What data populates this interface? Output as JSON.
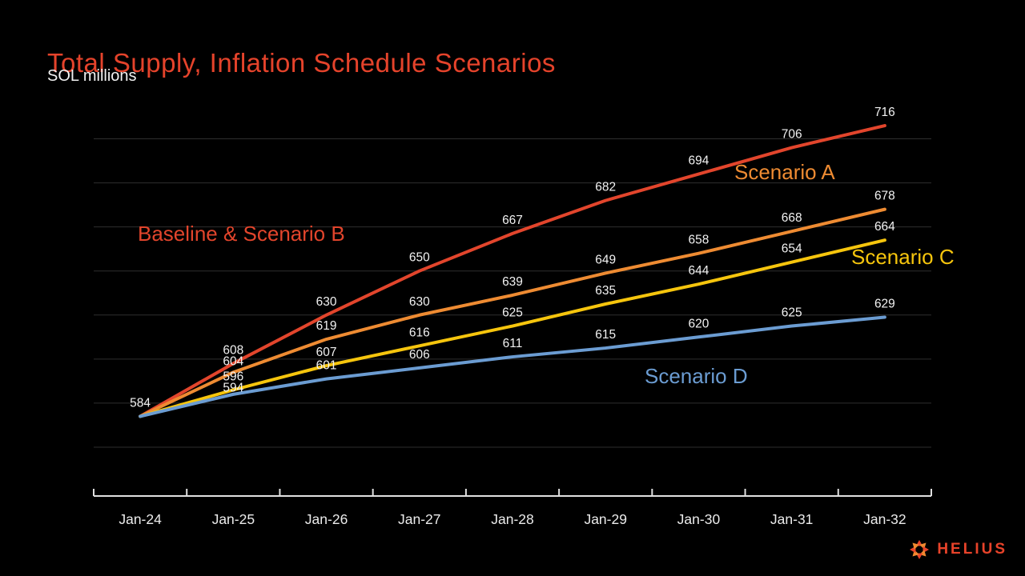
{
  "header": {
    "title": "Total Supply, Inflation Schedule Scenarios",
    "subtitle": "SOL millions",
    "title_color": "#e5432b"
  },
  "chart_data": {
    "type": "line",
    "title": "Total Supply, Inflation Schedule Scenarios",
    "ylabel": "SOL millions",
    "x_categories": [
      "Jan-24",
      "Jan-25",
      "Jan-26",
      "Jan-27",
      "Jan-28",
      "Jan-29",
      "Jan-30",
      "Jan-31",
      "Jan-32"
    ],
    "series": [
      {
        "name": "Baseline & Scenario B",
        "color": "#e2452c",
        "values": [
          584,
          608,
          630,
          650,
          667,
          682,
          694,
          706,
          716
        ]
      },
      {
        "name": "Scenario A",
        "color": "#ee8b32",
        "values": [
          584,
          604,
          619,
          630,
          639,
          649,
          658,
          668,
          678
        ]
      },
      {
        "name": "Scenario C",
        "color": "#f6c50d",
        "values": [
          584,
          596,
          607,
          616,
          625,
          635,
          644,
          654,
          664
        ]
      },
      {
        "name": "Scenario D",
        "color": "#6b9cd2",
        "values": [
          584,
          594,
          601,
          606,
          611,
          615,
          620,
          625,
          629
        ]
      }
    ],
    "ylim": [
      550,
      710
    ],
    "grid_step": 20,
    "grid_on": true,
    "grid_color": "#2e2e2e",
    "axis_color": "#e0e0e0",
    "tick_label_color": "#ebebeb",
    "value_label_color": "#f2f2f2",
    "value_labels_shown": true,
    "legend_position": "inline annotations beside each line"
  },
  "footer": {
    "brand": "HELIUS",
    "brand_color": "#e8432a",
    "icon_color_a": "#e8432a",
    "icon_color_b": "#f08a30"
  }
}
